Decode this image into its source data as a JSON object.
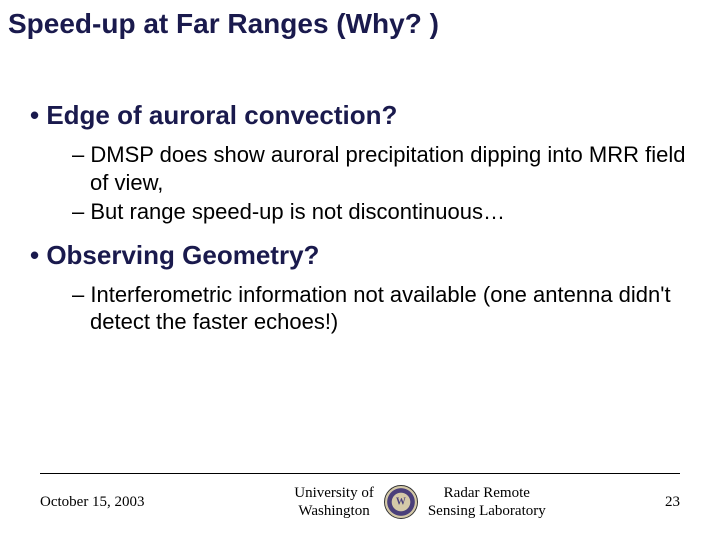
{
  "title": "Speed-up at Far Ranges (Why? )",
  "bullets": [
    {
      "level1": "Edge of auroral convection?",
      "level2": [
        "DMSP does show auroral precipitation dipping into MRR field of view,",
        "But range speed-up is not discontinuous…"
      ]
    },
    {
      "level1": "Observing Geometry?",
      "level2": [
        "Interferometric information not available (one antenna didn't detect the faster echoes!)"
      ]
    }
  ],
  "footer": {
    "date": "October 15, 2003",
    "university_line1": "University of",
    "university_line2": "Washington",
    "lab_line1": "Radar Remote",
    "lab_line2": "Sensing Laboratory",
    "page": "23"
  },
  "colors": {
    "title": "#1a1a4d",
    "bullet1": "#1a1a4d",
    "text": "#000000",
    "background": "#ffffff"
  },
  "fonts": {
    "title_size": 28,
    "bullet1_size": 26,
    "bullet2_size": 22,
    "footer_size": 15
  }
}
